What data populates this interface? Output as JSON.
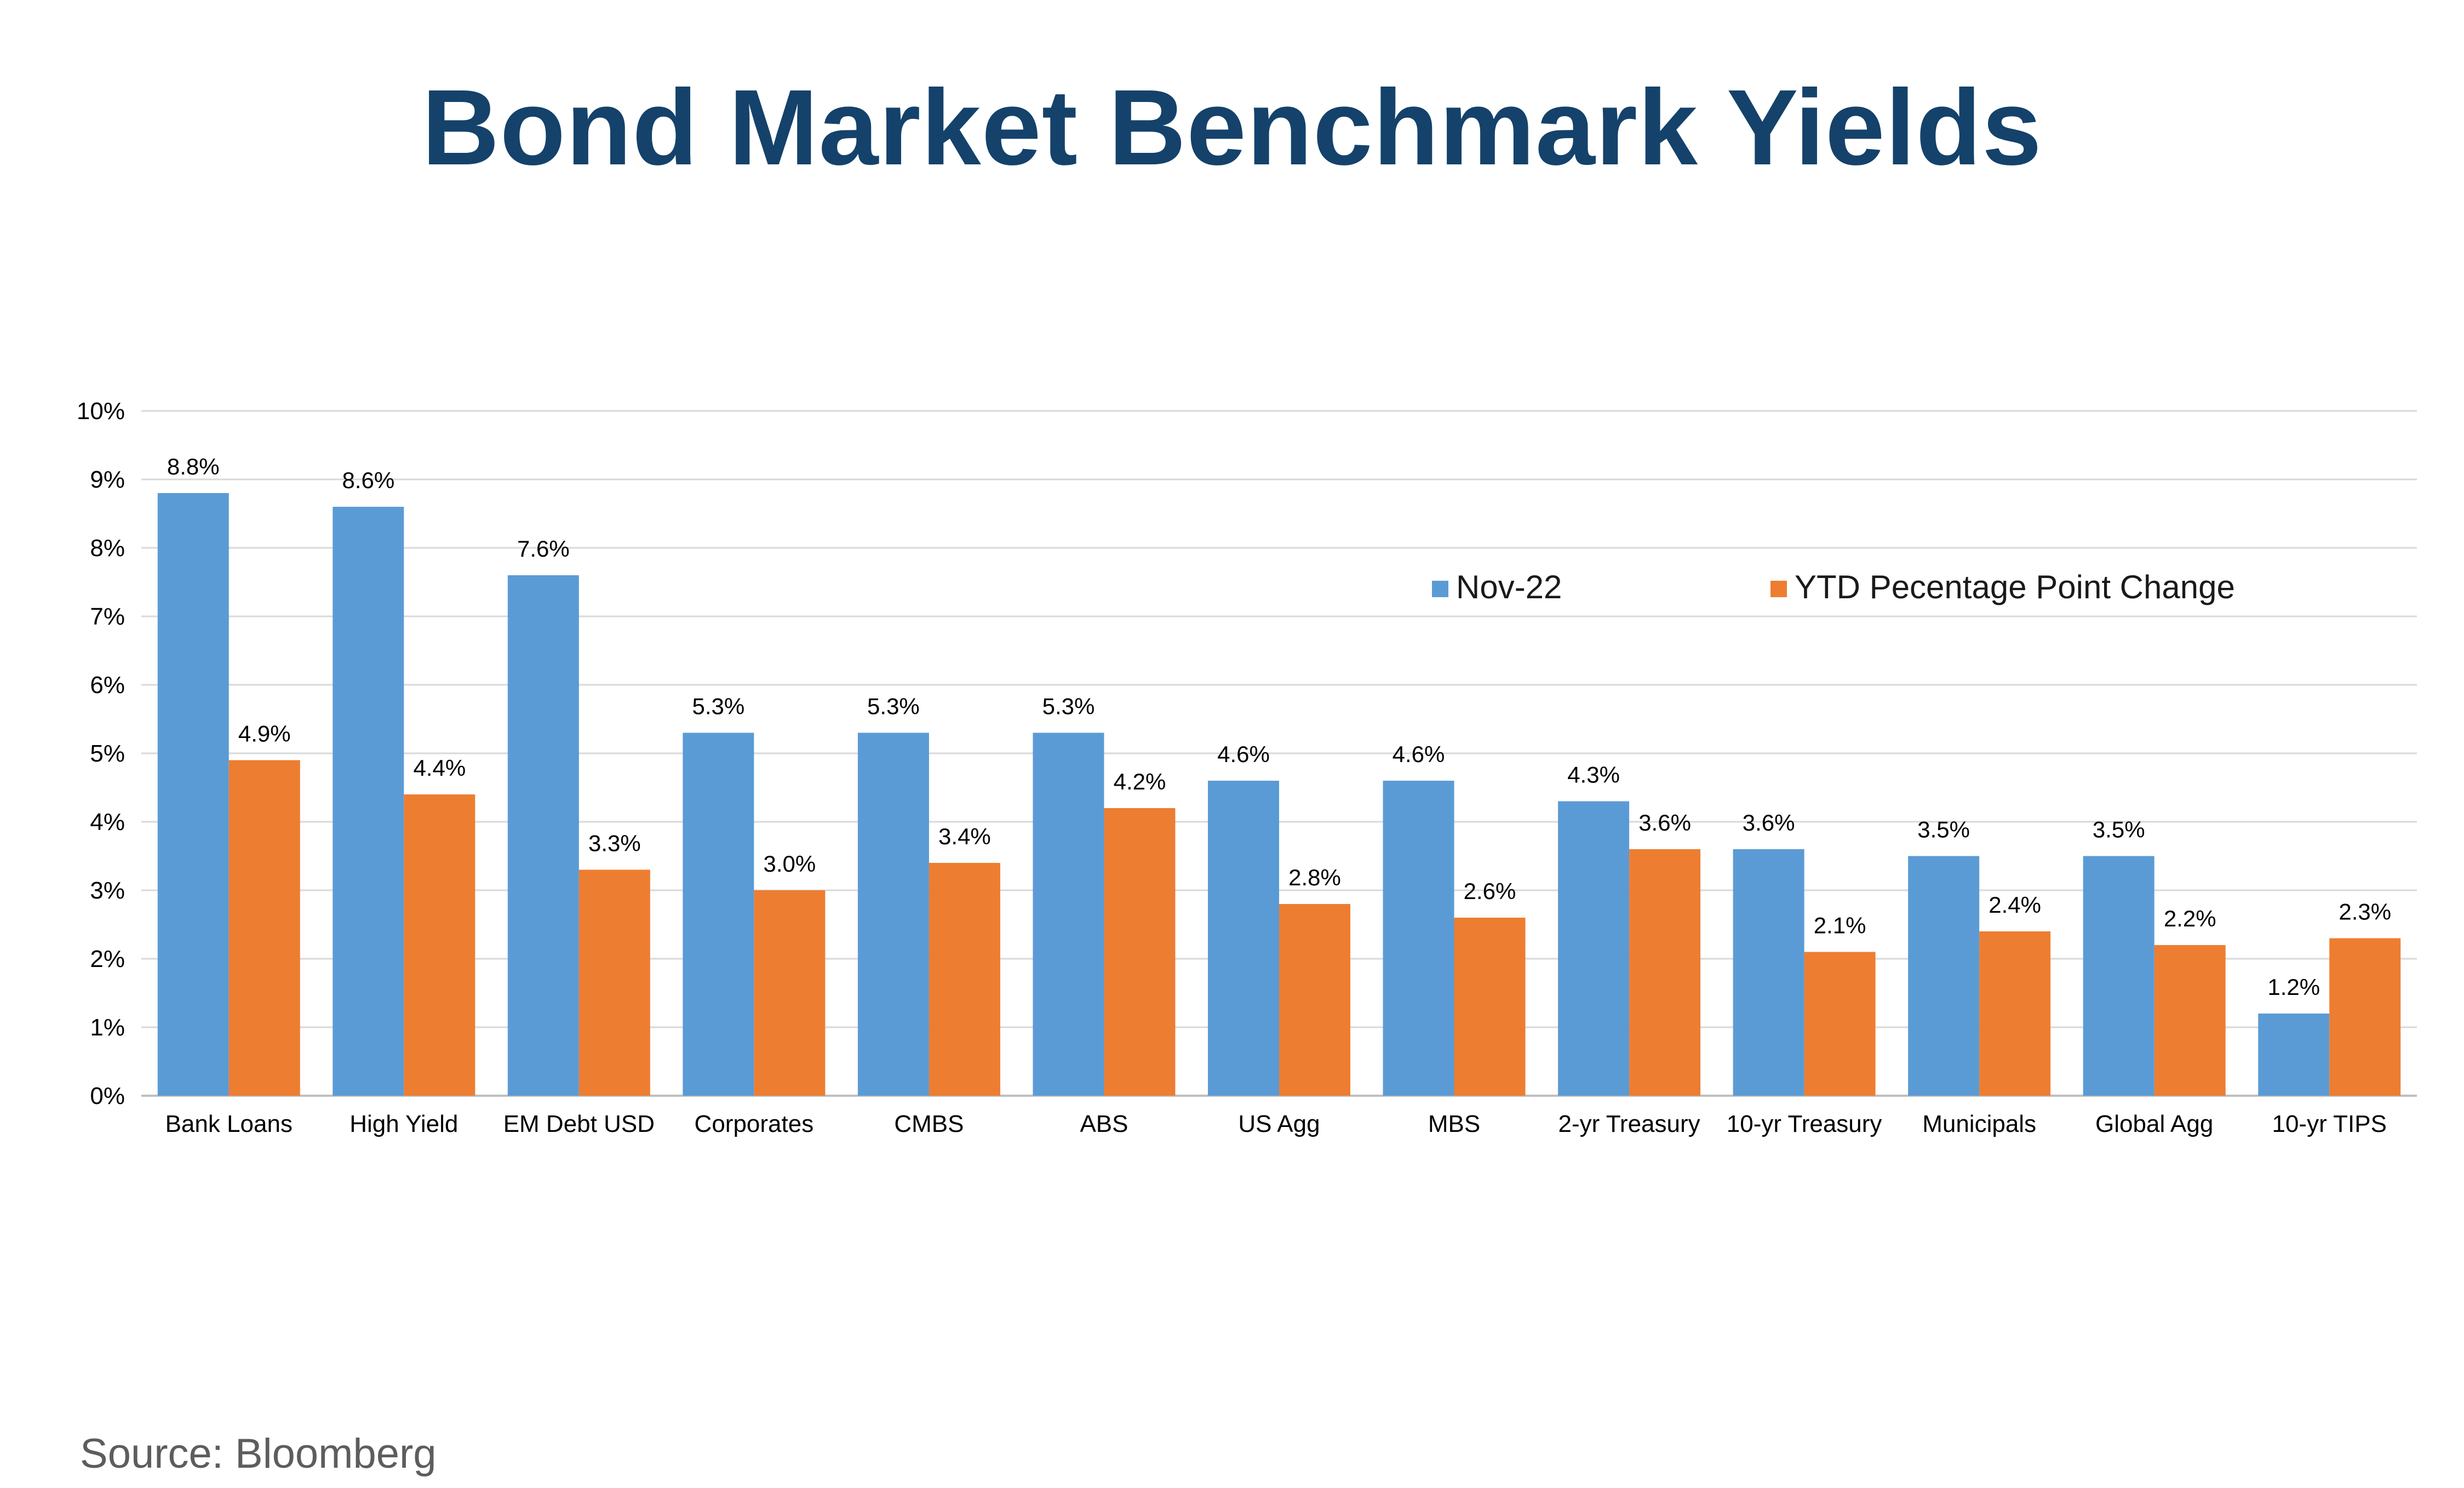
{
  "title": "Bond Market Benchmark Yields",
  "source": "Source: Bloomberg",
  "colors": {
    "title": "#14426b",
    "series1": "#5b9bd5",
    "series2": "#ed7d31",
    "grid": "#d9d9d9",
    "axis": "#bfbfbf"
  },
  "chart_data": {
    "type": "bar",
    "title": "Bond Market Benchmark Yields",
    "xlabel": "",
    "ylabel": "",
    "ylim": [
      0,
      10
    ],
    "y_ticks": [
      "0%",
      "1%",
      "2%",
      "3%",
      "4%",
      "5%",
      "6%",
      "7%",
      "8%",
      "9%",
      "10%"
    ],
    "grid": true,
    "legend_position": "top-right",
    "categories": [
      "Bank Loans",
      "High Yield",
      "EM Debt USD",
      "Corporates",
      "CMBS",
      "ABS",
      "US Agg",
      "MBS",
      "2-yr Treasury",
      "10-yr Treasury",
      "Municipals",
      "Global Agg",
      "10-yr TIPS"
    ],
    "series": [
      {
        "name": "Nov-22",
        "values": [
          8.8,
          8.6,
          7.6,
          5.3,
          5.3,
          5.3,
          4.6,
          4.6,
          4.3,
          3.6,
          3.5,
          3.5,
          1.2
        ],
        "labels": [
          "8.8%",
          "8.6%",
          "7.6%",
          "5.3%",
          "5.3%",
          "5.3%",
          "4.6%",
          "4.6%",
          "4.3%",
          "3.6%",
          "3.5%",
          "3.5%",
          "1.2%"
        ]
      },
      {
        "name": "YTD Pecentage Point Change",
        "values": [
          4.9,
          4.4,
          3.3,
          3.0,
          3.4,
          4.2,
          2.8,
          2.6,
          3.6,
          2.1,
          2.4,
          2.2,
          2.3
        ],
        "labels": [
          "4.9%",
          "4.4%",
          "3.3%",
          "3.0%",
          "3.4%",
          "4.2%",
          "2.8%",
          "2.6%",
          "3.6%",
          "2.1%",
          "2.4%",
          "2.2%",
          "2.3%"
        ]
      }
    ]
  }
}
